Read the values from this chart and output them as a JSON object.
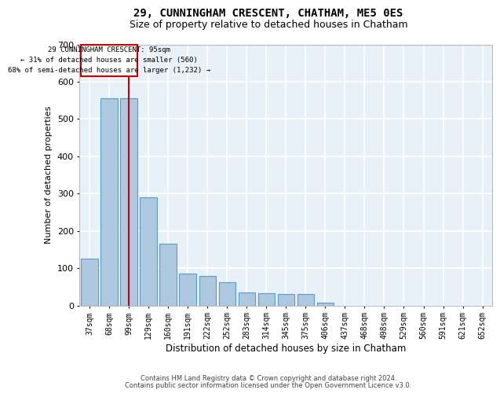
{
  "title1": "29, CUNNINGHAM CRESCENT, CHATHAM, ME5 0ES",
  "title2": "Size of property relative to detached houses in Chatham",
  "xlabel": "Distribution of detached houses by size in Chatham",
  "ylabel": "Number of detached properties",
  "footer1": "Contains HM Land Registry data © Crown copyright and database right 2024.",
  "footer2": "Contains public sector information licensed under the Open Government Licence v3.0.",
  "categories": [
    "37sqm",
    "68sqm",
    "99sqm",
    "129sqm",
    "160sqm",
    "191sqm",
    "222sqm",
    "252sqm",
    "283sqm",
    "314sqm",
    "345sqm",
    "375sqm",
    "406sqm",
    "437sqm",
    "468sqm",
    "498sqm",
    "529sqm",
    "560sqm",
    "591sqm",
    "621sqm",
    "652sqm"
  ],
  "values": [
    125,
    555,
    555,
    290,
    165,
    85,
    80,
    62,
    35,
    32,
    30,
    30,
    8,
    0,
    0,
    0,
    0,
    0,
    0,
    0,
    0
  ],
  "bar_color": "#aec8e0",
  "bar_edge_color": "#5a9bc8",
  "background_color": "#e8f0f8",
  "grid_color": "#ffffff",
  "annotation_line_color": "#cc0000",
  "annotation_box_color": "#cc0000",
  "property_bin_index": 2,
  "annotation_text_line1": "29 CUNNINGHAM CRESCENT: 95sqm",
  "annotation_text_line2": "← 31% of detached houses are smaller (560)",
  "annotation_text_line3": "68% of semi-detached houses are larger (1,232) →",
  "ylim_max": 700,
  "yticks": [
    0,
    100,
    200,
    300,
    400,
    500,
    600,
    700
  ]
}
